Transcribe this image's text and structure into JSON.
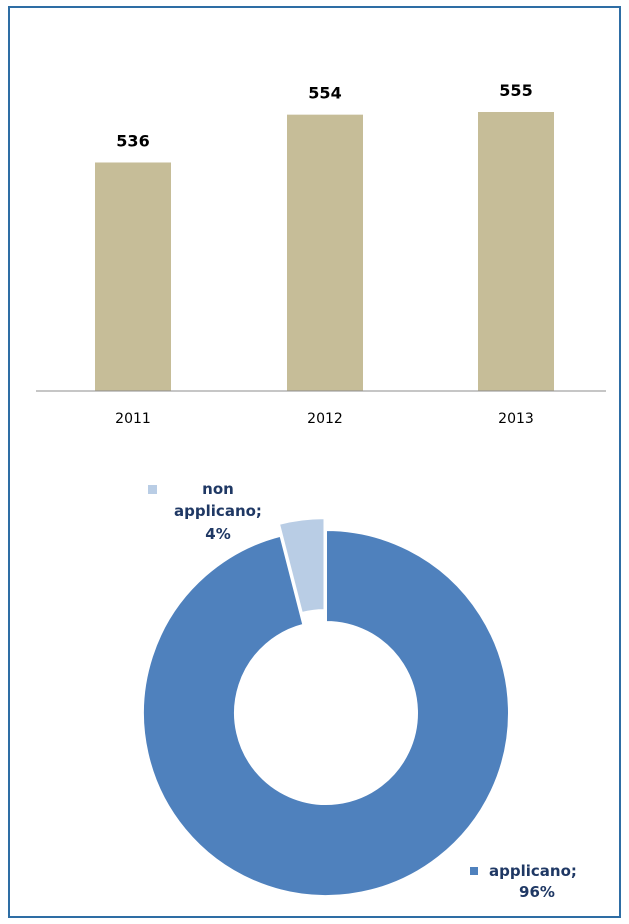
{
  "chart_data": [
    {
      "type": "bar",
      "categories": [
        "2011",
        "2012",
        "2013"
      ],
      "values": [
        536,
        554,
        555
      ],
      "title": "",
      "xlabel": "",
      "ylabel": "",
      "bar_color": "#c6bd98",
      "data_labels": true
    },
    {
      "type": "pie",
      "donut": true,
      "slices": [
        {
          "label_lines": [
            "applicano;",
            "96%"
          ],
          "value": 96,
          "color": "#4f81bd"
        },
        {
          "label_lines": [
            "non",
            "applicano;",
            "4%"
          ],
          "value": 4,
          "color": "#b9cde5",
          "exploded": true
        }
      ],
      "label_color": "#1f3864"
    }
  ],
  "frame_color": "#2e6da4"
}
